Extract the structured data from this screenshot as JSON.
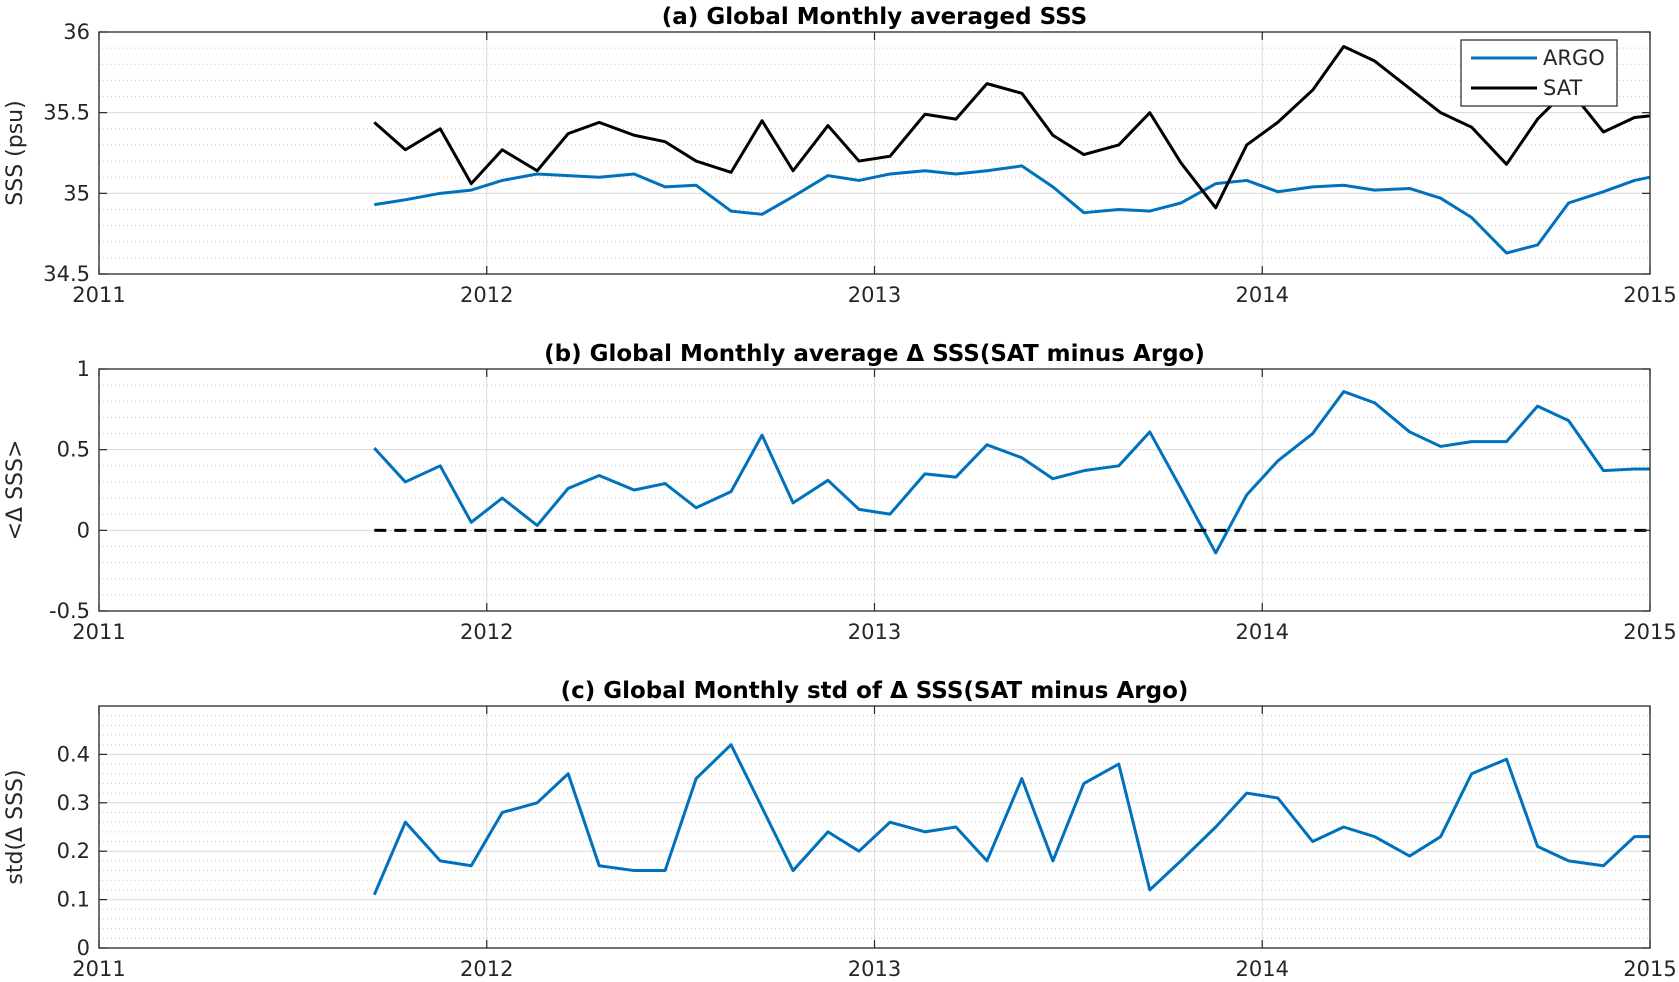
{
  "chart_data": [
    {
      "type": "line",
      "title": "(a) Global Monthly averaged SSS",
      "ylabel": "SSS (psu)",
      "xlabel": "",
      "xlim": [
        2011,
        2015
      ],
      "ylim": [
        34.5,
        36
      ],
      "xticks": [
        "2011",
        "2012",
        "2013",
        "2014",
        "2015"
      ],
      "yticks": [
        "34.5",
        "35",
        "35.5",
        "36"
      ],
      "grid": true,
      "legend": "top-right",
      "series": [
        {
          "name": "ARGO",
          "color": "#0072BD",
          "x": [
            2011.71,
            2011.79,
            2011.88,
            2011.96,
            2012.04,
            2012.13,
            2012.21,
            2012.29,
            2012.38,
            2012.46,
            2012.54,
            2012.63,
            2012.71,
            2012.79,
            2012.88,
            2012.96,
            2013.04,
            2013.13,
            2013.21,
            2013.29,
            2013.38,
            2013.46,
            2013.54,
            2013.63,
            2013.71,
            2013.79,
            2013.88,
            2013.96,
            2014.04,
            2014.13,
            2014.21,
            2014.29,
            2014.38,
            2014.46,
            2014.54,
            2014.63,
            2014.71,
            2014.79,
            2014.88,
            2014.96,
            2015.0
          ],
          "y": [
            34.93,
            34.96,
            35.0,
            35.02,
            35.08,
            35.12,
            35.11,
            35.1,
            35.12,
            35.04,
            35.05,
            34.89,
            34.87,
            34.98,
            35.11,
            35.08,
            35.12,
            35.14,
            35.12,
            35.14,
            35.17,
            35.04,
            34.88,
            34.9,
            34.89,
            34.94,
            35.06,
            35.08,
            35.01,
            35.04,
            35.05,
            35.02,
            35.03,
            34.97,
            34.85,
            34.63,
            34.68,
            34.94,
            35.01,
            35.08,
            35.1
          ]
        },
        {
          "name": "SAT",
          "color": "#000000",
          "x": [
            2011.71,
            2011.79,
            2011.88,
            2011.96,
            2012.04,
            2012.13,
            2012.21,
            2012.29,
            2012.38,
            2012.46,
            2012.54,
            2012.63,
            2012.71,
            2012.79,
            2012.88,
            2012.96,
            2013.04,
            2013.13,
            2013.21,
            2013.29,
            2013.38,
            2013.46,
            2013.54,
            2013.63,
            2013.71,
            2013.79,
            2013.88,
            2013.96,
            2014.04,
            2014.13,
            2014.21,
            2014.29,
            2014.38,
            2014.46,
            2014.54,
            2014.63,
            2014.71,
            2014.79,
            2014.88,
            2014.96,
            2015.0
          ],
          "y": [
            35.44,
            35.27,
            35.4,
            35.06,
            35.27,
            35.14,
            35.37,
            35.44,
            35.36,
            35.32,
            35.2,
            35.13,
            35.45,
            35.14,
            35.42,
            35.2,
            35.23,
            35.49,
            35.46,
            35.68,
            35.62,
            35.36,
            35.24,
            35.3,
            35.5,
            35.19,
            34.91,
            35.3,
            35.44,
            35.64,
            35.91,
            35.82,
            35.65,
            35.5,
            35.41,
            35.18,
            35.46,
            35.65,
            35.38,
            35.47,
            35.48
          ]
        }
      ]
    },
    {
      "type": "line",
      "title": "(b) Global Monthly average Δ SSS(SAT minus Argo)",
      "ylabel": "<Δ SSS>",
      "xlabel": "",
      "xlim": [
        2011,
        2015
      ],
      "ylim": [
        -0.5,
        1
      ],
      "xticks": [
        "2011",
        "2012",
        "2013",
        "2014",
        "2015"
      ],
      "yticks": [
        "-0.5",
        "0",
        "0.5",
        "1"
      ],
      "grid": true,
      "series": [
        {
          "color": "#0072BD",
          "x": [
            2011.71,
            2011.79,
            2011.88,
            2011.96,
            2012.04,
            2012.13,
            2012.21,
            2012.29,
            2012.38,
            2012.46,
            2012.54,
            2012.63,
            2012.71,
            2012.79,
            2012.88,
            2012.96,
            2013.04,
            2013.13,
            2013.21,
            2013.29,
            2013.38,
            2013.46,
            2013.54,
            2013.63,
            2013.71,
            2013.79,
            2013.88,
            2013.96,
            2014.04,
            2014.13,
            2014.21,
            2014.29,
            2014.38,
            2014.46,
            2014.54,
            2014.63,
            2014.71,
            2014.79,
            2014.88,
            2014.96,
            2015.0
          ],
          "y": [
            0.51,
            0.3,
            0.4,
            0.05,
            0.2,
            0.03,
            0.26,
            0.34,
            0.25,
            0.29,
            0.14,
            0.24,
            0.59,
            0.17,
            0.31,
            0.13,
            0.1,
            0.35,
            0.33,
            0.53,
            0.45,
            0.32,
            0.37,
            0.4,
            0.61,
            0.26,
            -0.14,
            0.22,
            0.43,
            0.6,
            0.86,
            0.79,
            0.61,
            0.52,
            0.55,
            0.55,
            0.77,
            0.68,
            0.37,
            0.38,
            0.38
          ]
        },
        {
          "color": "#000000",
          "dash": true,
          "x": [
            2011.71,
            2015.0
          ],
          "y": [
            0,
            0
          ]
        }
      ]
    },
    {
      "type": "line",
      "title": "(c) Global Monthly std of Δ SSS(SAT minus Argo)",
      "ylabel": "std(Δ SSS)",
      "xlabel": "",
      "xlim": [
        2011,
        2015
      ],
      "ylim": [
        0,
        0.5
      ],
      "xticks": [
        "2011",
        "2012",
        "2013",
        "2014",
        "2015"
      ],
      "yticks": [
        "0",
        "0.1",
        "0.2",
        "0.3",
        "0.4"
      ],
      "grid": true,
      "series": [
        {
          "color": "#0072BD",
          "x": [
            2011.71,
            2011.79,
            2011.88,
            2011.96,
            2012.04,
            2012.13,
            2012.21,
            2012.29,
            2012.38,
            2012.46,
            2012.54,
            2012.63,
            2012.71,
            2012.79,
            2012.88,
            2012.96,
            2013.04,
            2013.13,
            2013.21,
            2013.29,
            2013.38,
            2013.46,
            2013.54,
            2013.63,
            2013.71,
            2013.79,
            2013.88,
            2013.96,
            2014.04,
            2014.13,
            2014.21,
            2014.29,
            2014.38,
            2014.46,
            2014.54,
            2014.63,
            2014.71,
            2014.79,
            2014.88,
            2014.96,
            2015.0
          ],
          "y": [
            0.11,
            0.26,
            0.18,
            0.17,
            0.28,
            0.3,
            0.36,
            0.17,
            0.16,
            0.16,
            0.35,
            0.42,
            0.29,
            0.16,
            0.24,
            0.2,
            0.26,
            0.24,
            0.25,
            0.18,
            0.35,
            0.18,
            0.34,
            0.38,
            0.12,
            0.18,
            0.25,
            0.32,
            0.31,
            0.22,
            0.25,
            0.23,
            0.19,
            0.23,
            0.36,
            0.39,
            0.21,
            0.18,
            0.17,
            0.23,
            0.23
          ]
        }
      ]
    }
  ]
}
